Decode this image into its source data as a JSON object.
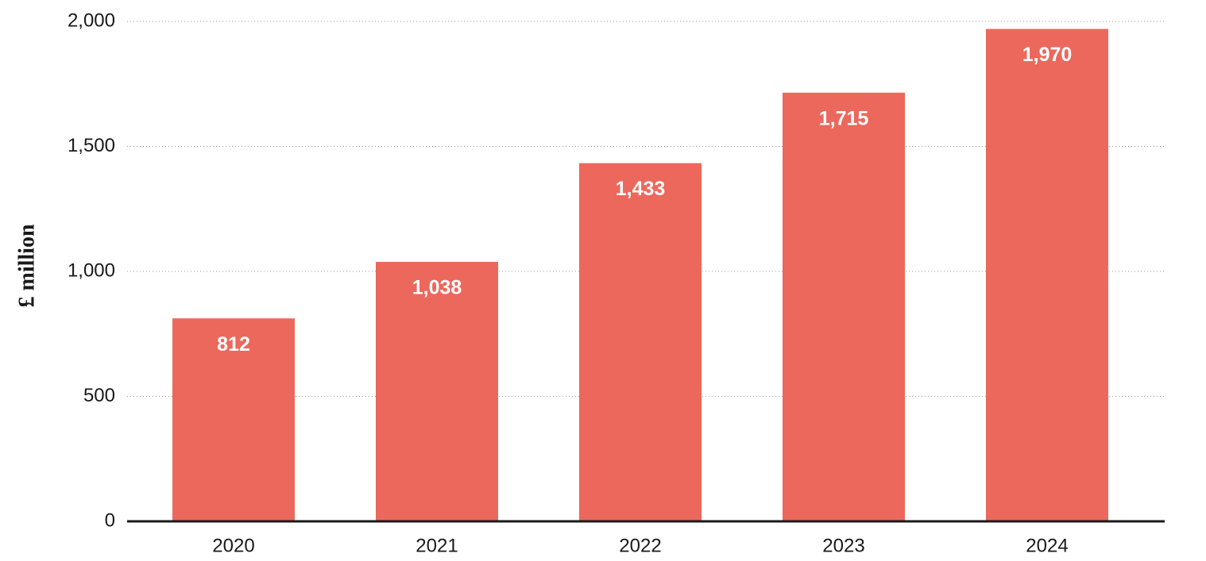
{
  "chart_data": {
    "type": "bar",
    "y_label": "£ million",
    "categories": [
      "2020",
      "2021",
      "2022",
      "2023",
      "2024"
    ],
    "values": [
      812,
      1038,
      1433,
      1715,
      1970
    ],
    "value_labels": [
      "812",
      "1,038",
      "1,433",
      "1,715",
      "1,970"
    ],
    "color": "#ec685c",
    "ylim": [
      0,
      2000
    ],
    "yticks": [
      0,
      500,
      {
        "value": 1000,
        "label": "1,000"
      },
      {
        "value": 1500,
        "label": "1,500"
      },
      {
        "value": 2000,
        "label": "2,000"
      }
    ],
    "grid": true
  }
}
